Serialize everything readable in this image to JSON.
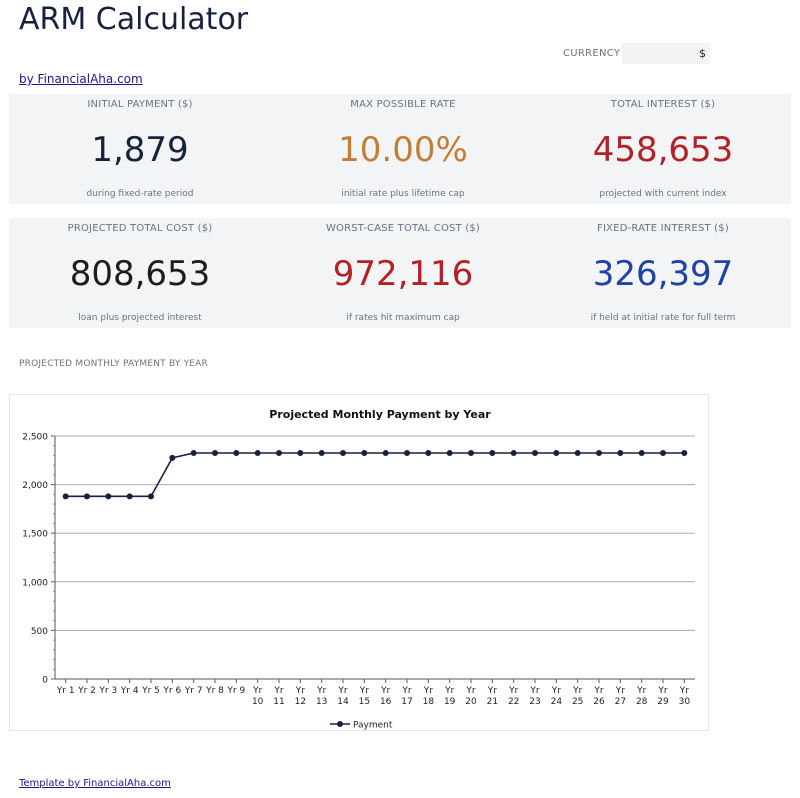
{
  "header": {
    "title": "ARM Calculator",
    "byline": "by FinancialAha.com",
    "currency_label": "CURRENCY",
    "currency_value": "$"
  },
  "colors": {
    "navy": "#16213d",
    "orange": "#c47d38",
    "red": "#b42024",
    "dark": "#1d1d1f",
    "blue": "#1f43a3"
  },
  "cards_row1": [
    {
      "label": "INITIAL PAYMENT ($)",
      "value": "1,879",
      "sub": "during fixed-rate period",
      "color": "#16213d"
    },
    {
      "label": "MAX POSSIBLE RATE",
      "value": "10.00%",
      "sub": "initial rate plus lifetime cap",
      "color": "#c47d38"
    },
    {
      "label": "TOTAL INTEREST ($)",
      "value": "458,653",
      "sub": "projected with current index",
      "color": "#b42024"
    }
  ],
  "cards_row2": [
    {
      "label": "PROJECTED TOTAL COST ($)",
      "value": "808,653",
      "sub": "loan plus projected interest",
      "color": "#1d1d1f"
    },
    {
      "label": "WORST-CASE TOTAL COST ($)",
      "value": "972,116",
      "sub": "if rates hit maximum cap",
      "color": "#b42024"
    },
    {
      "label": "FIXED-RATE INTEREST ($)",
      "value": "326,397",
      "sub": "if held at initial rate for full term",
      "color": "#1f43a3"
    }
  ],
  "section_title": "PROJECTED MONTHLY PAYMENT BY YEAR",
  "chart_data": {
    "type": "line",
    "title": "Projected Monthly Payment by Year",
    "xlabel": "",
    "ylabel": "",
    "categories": [
      "Yr 1",
      "Yr 2",
      "Yr 3",
      "Yr 4",
      "Yr 5",
      "Yr 6",
      "Yr 7",
      "Yr 8",
      "Yr 9",
      "Yr 10",
      "Yr 11",
      "Yr 12",
      "Yr 13",
      "Yr 14",
      "Yr 15",
      "Yr 16",
      "Yr 17",
      "Yr 18",
      "Yr 19",
      "Yr 20",
      "Yr 21",
      "Yr 22",
      "Yr 23",
      "Yr 24",
      "Yr 25",
      "Yr 26",
      "Yr 27",
      "Yr 28",
      "Yr 29",
      "Yr 30"
    ],
    "series": [
      {
        "name": "Payment",
        "values": [
          1879,
          1879,
          1879,
          1879,
          1879,
          2275,
          2325,
          2325,
          2325,
          2325,
          2325,
          2325,
          2325,
          2325,
          2325,
          2325,
          2325,
          2325,
          2325,
          2325,
          2325,
          2325,
          2325,
          2325,
          2325,
          2325,
          2325,
          2325,
          2325,
          2325
        ]
      }
    ],
    "ylim": [
      0,
      2500
    ],
    "yticks": [
      0,
      500,
      1000,
      1500,
      2000,
      2500
    ],
    "ytick_labels": [
      "0",
      "500",
      "1,000",
      "1,500",
      "2,000",
      "2,500"
    ],
    "grid": true,
    "legend": "bottom",
    "line_color": "#16213d"
  },
  "footer": "Template by FinancialAha.com"
}
